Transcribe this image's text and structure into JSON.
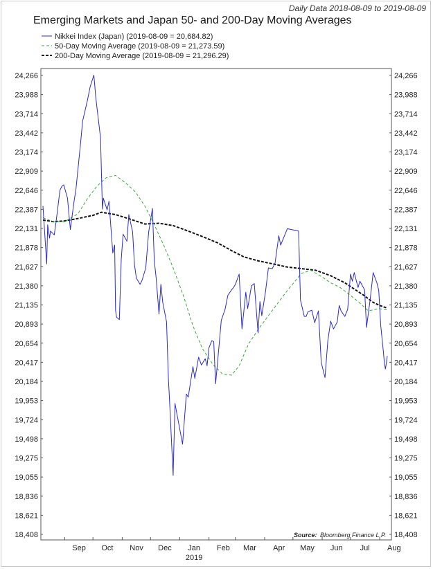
{
  "chart_data": {
    "type": "line",
    "title": "Emerging Markets and Japan 50- and 200-Day Moving Averages",
    "subtitle": "Daily Data 2018-08-09 to 2019-08-09",
    "source_label": "Source:",
    "source_text": "Bloomberg Finance L.P.",
    "ylim": [
      18408,
      24266
    ],
    "yticks": [
      "24,266",
      "23,988",
      "23,714",
      "23,442",
      "23,174",
      "22,909",
      "22,646",
      "22,387",
      "22,131",
      "21,878",
      "21,627",
      "21,380",
      "21,135",
      "20,893",
      "20,654",
      "20,417",
      "20,184",
      "19,953",
      "19,724",
      "19,498",
      "19,275",
      "19,055",
      "18,836",
      "18,621",
      "18,408"
    ],
    "xlim": [
      "2018-08-09",
      "2019-08-09"
    ],
    "xticks": [
      {
        "label": "Sep",
        "date": "2018-09-01"
      },
      {
        "label": "Oct",
        "date": "2018-10-01"
      },
      {
        "label": "Nov",
        "date": "2018-11-01"
      },
      {
        "label": "Dec",
        "date": "2018-12-01"
      },
      {
        "label": "Jan",
        "date": "2019-01-01",
        "year": "2019"
      },
      {
        "label": "Feb",
        "date": "2019-02-01"
      },
      {
        "label": "Mar",
        "date": "2019-03-01"
      },
      {
        "label": "Apr",
        "date": "2019-04-01"
      },
      {
        "label": "May",
        "date": "2019-05-01"
      },
      {
        "label": "Jun",
        "date": "2019-06-01"
      },
      {
        "label": "Jul",
        "date": "2019-07-01"
      },
      {
        "label": "Aug",
        "date": "2019-08-01"
      }
    ],
    "legend_position": "top-left",
    "grid": false,
    "series": [
      {
        "name": "Nikkei Index (Japan) (2019-08-09 = 20,684.82)",
        "color": "#2b2bcf",
        "style": "solid",
        "points": [
          [
            "2018-08-09",
            22600
          ],
          [
            "2018-08-13",
            21860
          ],
          [
            "2018-08-14",
            22360
          ],
          [
            "2018-08-16",
            22190
          ],
          [
            "2018-08-17",
            22280
          ],
          [
            "2018-08-21",
            22230
          ],
          [
            "2018-08-23",
            22410
          ],
          [
            "2018-08-27",
            22800
          ],
          [
            "2018-08-29",
            22850
          ],
          [
            "2018-08-31",
            22870
          ],
          [
            "2018-09-04",
            22700
          ],
          [
            "2018-09-07",
            22300
          ],
          [
            "2018-09-11",
            22660
          ],
          [
            "2018-09-13",
            22820
          ],
          [
            "2018-09-18",
            23420
          ],
          [
            "2018-09-20",
            23680
          ],
          [
            "2018-09-25",
            23940
          ],
          [
            "2018-09-28",
            24120
          ],
          [
            "2018-10-02",
            24270
          ],
          [
            "2018-10-04",
            23980
          ],
          [
            "2018-10-09",
            23470
          ],
          [
            "2018-10-11",
            22560
          ],
          [
            "2018-10-12",
            22700
          ],
          [
            "2018-10-16",
            22550
          ],
          [
            "2018-10-18",
            22660
          ],
          [
            "2018-10-22",
            22000
          ],
          [
            "2018-10-24",
            22100
          ],
          [
            "2018-10-25",
            21270
          ],
          [
            "2018-10-26",
            21180
          ],
          [
            "2018-10-29",
            21150
          ],
          [
            "2018-10-31",
            21920
          ],
          [
            "2018-11-02",
            22240
          ],
          [
            "2018-11-06",
            22150
          ],
          [
            "2018-11-08",
            22490
          ],
          [
            "2018-11-12",
            22270
          ],
          [
            "2018-11-14",
            21850
          ],
          [
            "2018-11-16",
            21680
          ],
          [
            "2018-11-20",
            21600
          ],
          [
            "2018-11-22",
            21650
          ],
          [
            "2018-11-26",
            21810
          ],
          [
            "2018-11-29",
            22260
          ],
          [
            "2018-12-03",
            22570
          ],
          [
            "2018-12-05",
            21900
          ],
          [
            "2018-12-07",
            21680
          ],
          [
            "2018-12-10",
            21220
          ],
          [
            "2018-12-12",
            21600
          ],
          [
            "2018-12-14",
            21370
          ],
          [
            "2018-12-18",
            21120
          ],
          [
            "2018-12-20",
            20390
          ],
          [
            "2018-12-21",
            20160
          ],
          [
            "2018-12-25",
            19160
          ],
          [
            "2018-12-27",
            20080
          ],
          [
            "2018-12-28",
            20010
          ],
          [
            "2019-01-04",
            19560
          ],
          [
            "2019-01-07",
            20040
          ],
          [
            "2019-01-08",
            20200
          ],
          [
            "2019-01-10",
            20160
          ],
          [
            "2019-01-15",
            20550
          ],
          [
            "2019-01-17",
            20400
          ],
          [
            "2019-01-21",
            20670
          ],
          [
            "2019-01-24",
            20570
          ],
          [
            "2019-01-28",
            20650
          ],
          [
            "2019-01-30",
            20560
          ],
          [
            "2019-02-01",
            20790
          ],
          [
            "2019-02-04",
            20880
          ],
          [
            "2019-02-06",
            20870
          ],
          [
            "2019-02-08",
            20330
          ],
          [
            "2019-02-12",
            20860
          ],
          [
            "2019-02-14",
            21140
          ],
          [
            "2019-02-18",
            21280
          ],
          [
            "2019-02-21",
            21460
          ],
          [
            "2019-02-25",
            21530
          ],
          [
            "2019-02-27",
            21560
          ],
          [
            "2019-03-01",
            21600
          ],
          [
            "2019-03-05",
            21730
          ],
          [
            "2019-03-08",
            21030
          ],
          [
            "2019-03-12",
            21500
          ],
          [
            "2019-03-14",
            21290
          ],
          [
            "2019-03-18",
            21580
          ],
          [
            "2019-03-21",
            21610
          ],
          [
            "2019-03-25",
            20980
          ],
          [
            "2019-03-27",
            21380
          ],
          [
            "2019-03-29",
            21200
          ],
          [
            "2019-04-02",
            21510
          ],
          [
            "2019-04-05",
            21810
          ],
          [
            "2019-04-09",
            21800
          ],
          [
            "2019-04-12",
            21870
          ],
          [
            "2019-04-16",
            22220
          ],
          [
            "2019-04-18",
            22100
          ],
          [
            "2019-04-22",
            22220
          ],
          [
            "2019-04-25",
            22310
          ],
          [
            "2019-05-07",
            22280
          ],
          [
            "2019-05-09",
            21400
          ],
          [
            "2019-05-13",
            21190
          ],
          [
            "2019-05-15",
            21190
          ],
          [
            "2019-05-17",
            21250
          ],
          [
            "2019-05-21",
            21270
          ],
          [
            "2019-05-24",
            21110
          ],
          [
            "2019-05-28",
            21260
          ],
          [
            "2019-05-31",
            20600
          ],
          [
            "2019-06-04",
            20410
          ],
          [
            "2019-06-07",
            20880
          ],
          [
            "2019-06-10",
            21130
          ],
          [
            "2019-06-13",
            21030
          ],
          [
            "2019-06-17",
            21120
          ],
          [
            "2019-06-19",
            21330
          ],
          [
            "2019-06-21",
            21260
          ],
          [
            "2019-06-25",
            21190
          ],
          [
            "2019-06-28",
            21280
          ],
          [
            "2019-07-01",
            21730
          ],
          [
            "2019-07-03",
            21640
          ],
          [
            "2019-07-05",
            21750
          ],
          [
            "2019-07-09",
            21560
          ],
          [
            "2019-07-11",
            21640
          ],
          [
            "2019-07-16",
            21530
          ],
          [
            "2019-07-18",
            21050
          ],
          [
            "2019-07-22",
            21420
          ],
          [
            "2019-07-25",
            21750
          ],
          [
            "2019-07-29",
            21620
          ],
          [
            "2019-07-31",
            21520
          ],
          [
            "2019-08-02",
            21080
          ],
          [
            "2019-08-05",
            20720
          ],
          [
            "2019-08-06",
            20590
          ],
          [
            "2019-08-07",
            20520
          ],
          [
            "2019-08-08",
            20590
          ],
          [
            "2019-08-09",
            20684.82
          ]
        ]
      },
      {
        "name": "50-Day Moving Average (2019-08-09 = 21,273.59)",
        "color": "#3aa83a",
        "style": "dashed",
        "points": [
          [
            "2018-08-09",
            22450
          ],
          [
            "2018-08-20",
            22400
          ],
          [
            "2018-09-01",
            22400
          ],
          [
            "2018-09-15",
            22500
          ],
          [
            "2018-09-25",
            22690
          ],
          [
            "2018-10-05",
            22850
          ],
          [
            "2018-10-15",
            22960
          ],
          [
            "2018-10-25",
            22990
          ],
          [
            "2018-11-05",
            22890
          ],
          [
            "2018-11-15",
            22780
          ],
          [
            "2018-11-25",
            22600
          ],
          [
            "2018-12-05",
            22360
          ],
          [
            "2018-12-15",
            22100
          ],
          [
            "2018-12-25",
            21810
          ],
          [
            "2019-01-05",
            21450
          ],
          [
            "2019-01-15",
            21070
          ],
          [
            "2019-01-25",
            20780
          ],
          [
            "2019-02-05",
            20580
          ],
          [
            "2019-02-15",
            20460
          ],
          [
            "2019-02-25",
            20440
          ],
          [
            "2019-03-05",
            20560
          ],
          [
            "2019-03-15",
            20840
          ],
          [
            "2019-03-25",
            21020
          ],
          [
            "2019-04-05",
            21200
          ],
          [
            "2019-04-15",
            21360
          ],
          [
            "2019-04-25",
            21520
          ],
          [
            "2019-05-10",
            21740
          ],
          [
            "2019-05-20",
            21780
          ],
          [
            "2019-05-31",
            21700
          ],
          [
            "2019-06-10",
            21620
          ],
          [
            "2019-06-20",
            21560
          ],
          [
            "2019-07-01",
            21460
          ],
          [
            "2019-07-10",
            21370
          ],
          [
            "2019-07-20",
            21260
          ],
          [
            "2019-07-31",
            21290
          ],
          [
            "2019-08-09",
            21273.59
          ]
        ]
      },
      {
        "name": "200-Day Moving Average (2019-08-09 = 21,296.29)",
        "color": "#111111",
        "style": "dashed",
        "points": [
          [
            "2018-08-09",
            22420
          ],
          [
            "2018-08-20",
            22400
          ],
          [
            "2018-09-01",
            22410
          ],
          [
            "2018-09-15",
            22440
          ],
          [
            "2018-10-01",
            22480
          ],
          [
            "2018-10-10",
            22520
          ],
          [
            "2018-10-25",
            22490
          ],
          [
            "2018-11-10",
            22430
          ],
          [
            "2018-11-25",
            22370
          ],
          [
            "2018-12-10",
            22380
          ],
          [
            "2018-12-25",
            22350
          ],
          [
            "2019-01-10",
            22280
          ],
          [
            "2019-01-25",
            22210
          ],
          [
            "2019-02-10",
            22130
          ],
          [
            "2019-02-25",
            22030
          ],
          [
            "2019-03-10",
            21950
          ],
          [
            "2019-03-25",
            21900
          ],
          [
            "2019-04-10",
            21860
          ],
          [
            "2019-04-25",
            21820
          ],
          [
            "2019-05-10",
            21800
          ],
          [
            "2019-05-25",
            21780
          ],
          [
            "2019-06-10",
            21710
          ],
          [
            "2019-06-25",
            21620
          ],
          [
            "2019-07-05",
            21540
          ],
          [
            "2019-07-15",
            21460
          ],
          [
            "2019-07-25",
            21370
          ],
          [
            "2019-08-01",
            21330
          ],
          [
            "2019-08-09",
            21296.29
          ]
        ]
      }
    ]
  }
}
